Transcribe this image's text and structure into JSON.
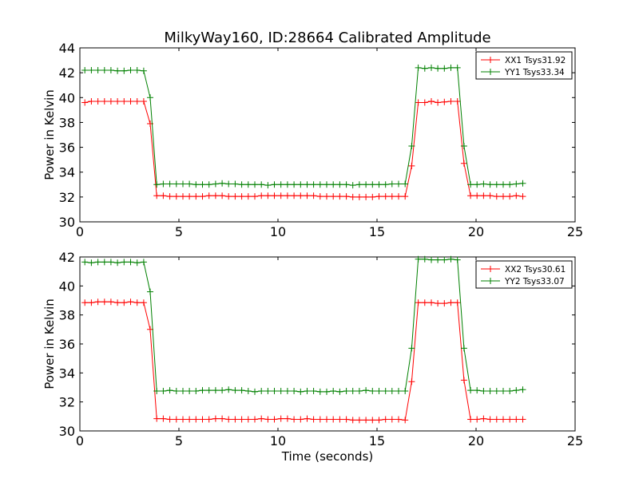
{
  "title": "MilkyWay160, ID:28664 Calibrated Amplitude",
  "chart_data": [
    {
      "type": "line",
      "title": "MilkyWay160, ID:28664 Calibrated Amplitude",
      "xlabel": "",
      "ylabel": "Power in Kelvin",
      "xlim": [
        0,
        25
      ],
      "ylim": [
        30,
        44
      ],
      "xticks": [
        0,
        5,
        10,
        15,
        20,
        25
      ],
      "yticks": [
        30,
        32,
        34,
        36,
        38,
        40,
        42,
        44
      ],
      "grid": false,
      "legend_position": "top-right",
      "series": [
        {
          "name": "XX1 Tsys31.92",
          "color": "#ff0000",
          "x": [
            0.25,
            0.58,
            0.91,
            1.24,
            1.57,
            1.9,
            2.23,
            2.56,
            2.89,
            3.22,
            3.55,
            3.88,
            4.21,
            4.54,
            4.87,
            5.2,
            5.53,
            5.86,
            6.19,
            6.52,
            6.85,
            7.18,
            7.51,
            7.84,
            8.17,
            8.5,
            8.83,
            9.16,
            9.49,
            9.82,
            10.15,
            10.48,
            10.81,
            11.14,
            11.47,
            11.8,
            12.13,
            12.46,
            12.79,
            13.12,
            13.45,
            13.78,
            14.11,
            14.44,
            14.77,
            15.1,
            15.43,
            15.76,
            16.09,
            16.42,
            16.75,
            17.08,
            17.41,
            17.74,
            18.07,
            18.4,
            18.73,
            19.06,
            19.39,
            19.72,
            20.05,
            20.38,
            20.71,
            21.04,
            21.37,
            21.7,
            22.03,
            22.36
          ],
          "y": [
            39.6,
            39.7,
            39.7,
            39.7,
            39.7,
            39.7,
            39.7,
            39.7,
            39.7,
            39.7,
            37.9,
            32.1,
            32.1,
            32.05,
            32.05,
            32.05,
            32.05,
            32.05,
            32.05,
            32.1,
            32.1,
            32.1,
            32.05,
            32.05,
            32.05,
            32.05,
            32.05,
            32.1,
            32.1,
            32.1,
            32.1,
            32.1,
            32.1,
            32.1,
            32.1,
            32.1,
            32.05,
            32.05,
            32.05,
            32.05,
            32.05,
            32.0,
            32.0,
            32.0,
            32.0,
            32.05,
            32.05,
            32.05,
            32.05,
            32.05,
            34.5,
            39.6,
            39.6,
            39.7,
            39.6,
            39.65,
            39.7,
            39.7,
            34.7,
            32.1,
            32.1,
            32.1,
            32.1,
            32.05,
            32.05,
            32.05,
            32.1,
            32.05
          ]
        },
        {
          "name": "YY1 Tsys33.34",
          "color": "#008000",
          "x": [
            0.25,
            0.58,
            0.91,
            1.24,
            1.57,
            1.9,
            2.23,
            2.56,
            2.89,
            3.22,
            3.55,
            3.88,
            4.21,
            4.54,
            4.87,
            5.2,
            5.53,
            5.86,
            6.19,
            6.52,
            6.85,
            7.18,
            7.51,
            7.84,
            8.17,
            8.5,
            8.83,
            9.16,
            9.49,
            9.82,
            10.15,
            10.48,
            10.81,
            11.14,
            11.47,
            11.8,
            12.13,
            12.46,
            12.79,
            13.12,
            13.45,
            13.78,
            14.11,
            14.44,
            14.77,
            15.1,
            15.43,
            15.76,
            16.09,
            16.42,
            16.75,
            17.08,
            17.41,
            17.74,
            18.07,
            18.4,
            18.73,
            19.06,
            19.39,
            19.72,
            20.05,
            20.38,
            20.71,
            21.04,
            21.37,
            21.7,
            22.03,
            22.36
          ],
          "y": [
            42.2,
            42.2,
            42.2,
            42.2,
            42.2,
            42.15,
            42.15,
            42.2,
            42.2,
            42.15,
            40.0,
            33.0,
            33.05,
            33.05,
            33.05,
            33.05,
            33.05,
            33.0,
            33.0,
            33.0,
            33.05,
            33.1,
            33.05,
            33.05,
            33.0,
            33.0,
            33.0,
            33.0,
            32.95,
            33.0,
            33.0,
            33.0,
            33.0,
            33.0,
            33.0,
            33.0,
            33.0,
            33.0,
            33.0,
            33.0,
            33.0,
            32.95,
            33.0,
            33.0,
            33.0,
            33.0,
            33.0,
            33.05,
            33.05,
            33.05,
            36.1,
            42.4,
            42.35,
            42.4,
            42.35,
            42.35,
            42.4,
            42.4,
            36.1,
            33.0,
            33.0,
            33.05,
            33.0,
            33.0,
            33.0,
            33.0,
            33.05,
            33.1
          ]
        }
      ]
    },
    {
      "type": "line",
      "title": "",
      "xlabel": "Time (seconds)",
      "ylabel": "Power in Kelvin",
      "xlim": [
        0,
        25
      ],
      "ylim": [
        30,
        42
      ],
      "xticks": [
        0,
        5,
        10,
        15,
        20,
        25
      ],
      "yticks": [
        30,
        32,
        34,
        36,
        38,
        40,
        42
      ],
      "grid": false,
      "legend_position": "top-right",
      "series": [
        {
          "name": "XX2 Tsys30.61",
          "color": "#ff0000",
          "x": [
            0.25,
            0.58,
            0.91,
            1.24,
            1.57,
            1.9,
            2.23,
            2.56,
            2.89,
            3.22,
            3.55,
            3.88,
            4.21,
            4.54,
            4.87,
            5.2,
            5.53,
            5.86,
            6.19,
            6.52,
            6.85,
            7.18,
            7.51,
            7.84,
            8.17,
            8.5,
            8.83,
            9.16,
            9.49,
            9.82,
            10.15,
            10.48,
            10.81,
            11.14,
            11.47,
            11.8,
            12.13,
            12.46,
            12.79,
            13.12,
            13.45,
            13.78,
            14.11,
            14.44,
            14.77,
            15.1,
            15.43,
            15.76,
            16.09,
            16.42,
            16.75,
            17.08,
            17.41,
            17.74,
            18.07,
            18.4,
            18.73,
            19.06,
            19.39,
            19.72,
            20.05,
            20.38,
            20.71,
            21.04,
            21.37,
            21.7,
            22.03,
            22.36
          ],
          "y": [
            38.85,
            38.85,
            38.9,
            38.9,
            38.9,
            38.85,
            38.85,
            38.9,
            38.85,
            38.85,
            37.0,
            30.85,
            30.85,
            30.8,
            30.8,
            30.8,
            30.8,
            30.8,
            30.8,
            30.8,
            30.85,
            30.85,
            30.8,
            30.8,
            30.8,
            30.8,
            30.8,
            30.85,
            30.8,
            30.8,
            30.85,
            30.85,
            30.8,
            30.8,
            30.85,
            30.8,
            30.8,
            30.8,
            30.8,
            30.8,
            30.8,
            30.75,
            30.75,
            30.75,
            30.75,
            30.75,
            30.8,
            30.8,
            30.8,
            30.75,
            33.4,
            38.85,
            38.85,
            38.85,
            38.8,
            38.8,
            38.85,
            38.85,
            33.5,
            30.8,
            30.8,
            30.85,
            30.8,
            30.8,
            30.8,
            30.8,
            30.8,
            30.8
          ]
        },
        {
          "name": "YY2 Tsys33.07",
          "color": "#008000",
          "x": [
            0.25,
            0.58,
            0.91,
            1.24,
            1.57,
            1.9,
            2.23,
            2.56,
            2.89,
            3.22,
            3.55,
            3.88,
            4.21,
            4.54,
            4.87,
            5.2,
            5.53,
            5.86,
            6.19,
            6.52,
            6.85,
            7.18,
            7.51,
            7.84,
            8.17,
            8.5,
            8.83,
            9.16,
            9.49,
            9.82,
            10.15,
            10.48,
            10.81,
            11.14,
            11.47,
            11.8,
            12.13,
            12.46,
            12.79,
            13.12,
            13.45,
            13.78,
            14.11,
            14.44,
            14.77,
            15.1,
            15.43,
            15.76,
            16.09,
            16.42,
            16.75,
            17.08,
            17.41,
            17.74,
            18.07,
            18.4,
            18.73,
            19.06,
            19.39,
            19.72,
            20.05,
            20.38,
            20.71,
            21.04,
            21.37,
            21.7,
            22.03,
            22.36
          ],
          "y": [
            41.65,
            41.6,
            41.65,
            41.65,
            41.65,
            41.6,
            41.65,
            41.65,
            41.6,
            41.65,
            39.6,
            32.75,
            32.75,
            32.8,
            32.75,
            32.75,
            32.75,
            32.75,
            32.8,
            32.8,
            32.8,
            32.8,
            32.85,
            32.8,
            32.8,
            32.75,
            32.7,
            32.75,
            32.75,
            32.75,
            32.75,
            32.75,
            32.75,
            32.7,
            32.75,
            32.75,
            32.7,
            32.7,
            32.75,
            32.7,
            32.75,
            32.75,
            32.75,
            32.8,
            32.75,
            32.75,
            32.75,
            32.75,
            32.75,
            32.75,
            35.7,
            41.85,
            41.85,
            41.8,
            41.8,
            41.8,
            41.85,
            41.8,
            35.7,
            32.8,
            32.8,
            32.75,
            32.75,
            32.75,
            32.75,
            32.75,
            32.8,
            32.85
          ]
        }
      ]
    }
  ]
}
